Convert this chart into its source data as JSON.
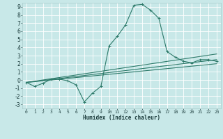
{
  "xlabel": "Humidex (Indice chaleur)",
  "ylabel": "",
  "bg_color": "#c8e8e8",
  "grid_color": "#ffffff",
  "line_color": "#2d7a6a",
  "xlim": [
    -0.5,
    23.5
  ],
  "ylim": [
    -3.5,
    9.5
  ],
  "xticks": [
    0,
    1,
    2,
    3,
    4,
    5,
    6,
    7,
    8,
    9,
    10,
    11,
    12,
    13,
    14,
    15,
    16,
    17,
    18,
    19,
    20,
    21,
    22,
    23
  ],
  "yticks": [
    -3,
    -2,
    -1,
    0,
    1,
    2,
    3,
    4,
    5,
    6,
    7,
    8,
    9
  ],
  "series": [
    {
      "x": [
        0,
        1,
        2,
        3,
        4,
        5,
        6,
        7,
        8,
        9,
        10,
        11,
        12,
        13,
        14,
        15,
        16,
        17,
        18,
        19,
        20,
        21,
        22,
        23
      ],
      "y": [
        -0.3,
        -0.8,
        -0.4,
        0.1,
        0.1,
        -0.1,
        -0.6,
        -2.7,
        -1.6,
        -0.8,
        4.2,
        5.4,
        6.8,
        9.2,
        9.3,
        8.6,
        7.6,
        3.5,
        2.8,
        2.3,
        2.1,
        2.5,
        2.5,
        2.3
      ],
      "marker": "+",
      "lw": 0.8
    },
    {
      "x": [
        0,
        23
      ],
      "y": [
        -0.3,
        3.2
      ],
      "marker": null,
      "lw": 0.8
    },
    {
      "x": [
        0,
        23
      ],
      "y": [
        -0.3,
        2.5
      ],
      "marker": null,
      "lw": 0.8
    },
    {
      "x": [
        0,
        23
      ],
      "y": [
        -0.3,
        2.0
      ],
      "marker": null,
      "lw": 0.8
    }
  ]
}
